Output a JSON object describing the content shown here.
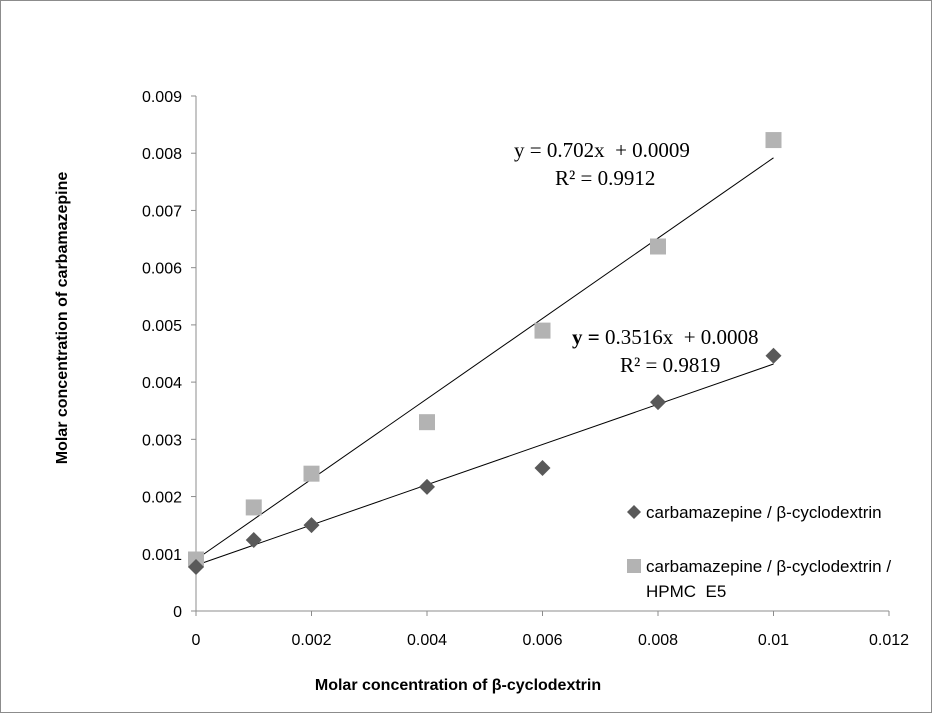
{
  "chart_data": {
    "type": "scatter",
    "xlabel": "Molar concentration of β-cyclodextrin",
    "ylabel": "Molar  concentration of carbamazepine",
    "xlim": [
      0,
      0.012
    ],
    "ylim": [
      0,
      0.009
    ],
    "xticks": [
      "0",
      "0.002",
      "0.004",
      "0.006",
      "0.008",
      "0.01",
      "0.012"
    ],
    "yticks": [
      "0",
      "0.001",
      "0.002",
      "0.003",
      "0.004",
      "0.005",
      "0.006",
      "0.007",
      "0.008",
      "0.009"
    ],
    "grid": false,
    "legend_position": "bottom-right",
    "series": [
      {
        "name": "carbamazepine / β-cyclodextrin",
        "marker": "diamond",
        "color": "#595959",
        "x": [
          0,
          0.001,
          0.002,
          0.004,
          0.006,
          0.008,
          0.01
        ],
        "y": [
          0.00077,
          0.00124,
          0.0015,
          0.00217,
          0.0025,
          0.00365,
          0.00446
        ],
        "trendline": {
          "slope": 0.3516,
          "intercept": 0.0008,
          "equation_prefix": "y =",
          "equation_rest": " 0.3516x  + 0.0008",
          "r2": "R² = 0.9819"
        }
      },
      {
        "name_lines": [
          "carbamazepine / β-cyclodextrin /",
          "HPMC  E5"
        ],
        "marker": "square",
        "color": "#b3b3b3",
        "x": [
          0,
          0.001,
          0.002,
          0.004,
          0.006,
          0.008,
          0.01
        ],
        "y": [
          0.0009,
          0.00181,
          0.0024,
          0.0033,
          0.0049,
          0.00637,
          0.00823
        ],
        "trendline": {
          "slope": 0.702,
          "intercept": 0.0009,
          "equation": "y = 0.702x  + 0.0009",
          "r2": "R² = 0.9912"
        }
      }
    ]
  }
}
